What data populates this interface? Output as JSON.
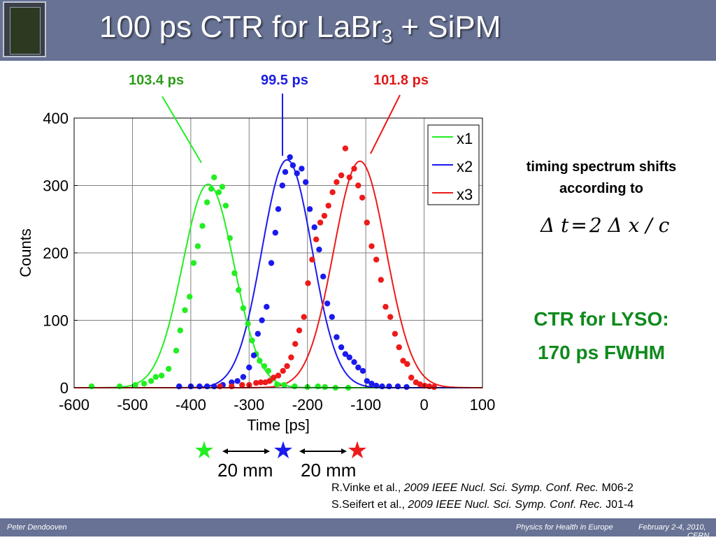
{
  "header": {
    "title_main": "100 ps CTR for LaBr",
    "title_sub": "3",
    "title_tail": " + SiPM"
  },
  "peak_labels": [
    {
      "text": "103.4 ps",
      "color": "#2e9c1a"
    },
    {
      "text": "99.5 ps",
      "color": "#1c1ce0"
    },
    {
      "text": "101.8 ps",
      "color": "#e01a1a"
    }
  ],
  "chart_data": {
    "type": "line",
    "xlabel": "Time [ps]",
    "ylabel": "Counts",
    "xlim": [
      -600,
      100
    ],
    "ylim": [
      0,
      400
    ],
    "xticks": [
      "-600",
      "-500",
      "-400",
      "-300",
      "-200",
      "-100",
      "0",
      "100"
    ],
    "yticks": [
      "0",
      "100",
      "200",
      "300",
      "400"
    ],
    "grid": true,
    "legend_position": "top-right",
    "series": [
      {
        "name": "x1",
        "color": "#22ee22",
        "fit": {
          "center": -370,
          "amplitude": 302,
          "sigma": 44
        },
        "points": [
          [
            -570,
            2
          ],
          [
            -522,
            2
          ],
          [
            -495,
            4
          ],
          [
            -480,
            6
          ],
          [
            -468,
            10
          ],
          [
            -460,
            16
          ],
          [
            -450,
            18
          ],
          [
            -438,
            28
          ],
          [
            -425,
            55
          ],
          [
            -418,
            85
          ],
          [
            -410,
            115
          ],
          [
            -402,
            135
          ],
          [
            -395,
            185
          ],
          [
            -388,
            210
          ],
          [
            -380,
            240
          ],
          [
            -372,
            275
          ],
          [
            -365,
            295
          ],
          [
            -360,
            312
          ],
          [
            -352,
            290
          ],
          [
            -346,
            298
          ],
          [
            -340,
            270
          ],
          [
            -333,
            222
          ],
          [
            -325,
            170
          ],
          [
            -318,
            145
          ],
          [
            -310,
            118
          ],
          [
            -302,
            95
          ],
          [
            -295,
            70
          ],
          [
            -288,
            50
          ],
          [
            -282,
            40
          ],
          [
            -274,
            32
          ],
          [
            -267,
            25
          ],
          [
            -262,
            12
          ],
          [
            -252,
            5
          ],
          [
            -240,
            4
          ],
          [
            -222,
            2
          ],
          [
            -200,
            1
          ],
          [
            -182,
            2
          ],
          [
            -170,
            1
          ],
          [
            -152,
            0
          ],
          [
            -130,
            0
          ]
        ]
      },
      {
        "name": "x2",
        "color": "#1a1aee",
        "fit": {
          "center": -235,
          "amplitude": 338,
          "sigma": 43
        },
        "points": [
          [
            -420,
            2
          ],
          [
            -400,
            2
          ],
          [
            -385,
            2
          ],
          [
            -372,
            2
          ],
          [
            -360,
            2
          ],
          [
            -345,
            4
          ],
          [
            -330,
            8
          ],
          [
            -320,
            10
          ],
          [
            -310,
            16
          ],
          [
            -300,
            30
          ],
          [
            -292,
            48
          ],
          [
            -285,
            80
          ],
          [
            -278,
            100
          ],
          [
            -270,
            120
          ],
          [
            -262,
            185
          ],
          [
            -255,
            230
          ],
          [
            -250,
            265
          ],
          [
            -243,
            300
          ],
          [
            -238,
            320
          ],
          [
            -230,
            342
          ],
          [
            -225,
            330
          ],
          [
            -218,
            318
          ],
          [
            -210,
            325
          ],
          [
            -203,
            305
          ],
          [
            -196,
            265
          ],
          [
            -188,
            238
          ],
          [
            -180,
            205
          ],
          [
            -173,
            165
          ],
          [
            -166,
            125
          ],
          [
            -158,
            105
          ],
          [
            -150,
            75
          ],
          [
            -142,
            60
          ],
          [
            -135,
            50
          ],
          [
            -128,
            45
          ],
          [
            -120,
            38
          ],
          [
            -113,
            30
          ],
          [
            -105,
            25
          ],
          [
            -98,
            10
          ],
          [
            -90,
            6
          ],
          [
            -82,
            3
          ],
          [
            -72,
            2
          ],
          [
            -60,
            2
          ],
          [
            -45,
            2
          ],
          [
            -30,
            1
          ]
        ]
      },
      {
        "name": "x3",
        "color": "#ee1a1a",
        "fit": {
          "center": -110,
          "amplitude": 336,
          "sigma": 45
        },
        "points": [
          [
            -350,
            2
          ],
          [
            -330,
            2
          ],
          [
            -312,
            4
          ],
          [
            -300,
            4
          ],
          [
            -288,
            7
          ],
          [
            -280,
            8
          ],
          [
            -272,
            8
          ],
          [
            -265,
            10
          ],
          [
            -258,
            15
          ],
          [
            -250,
            18
          ],
          [
            -242,
            25
          ],
          [
            -235,
            32
          ],
          [
            -228,
            45
          ],
          [
            -221,
            65
          ],
          [
            -214,
            85
          ],
          [
            -206,
            105
          ],
          [
            -199,
            155
          ],
          [
            -192,
            190
          ],
          [
            -185,
            220
          ],
          [
            -178,
            245
          ],
          [
            -171,
            255
          ],
          [
            -164,
            270
          ],
          [
            -157,
            290
          ],
          [
            -150,
            305
          ],
          [
            -142,
            315
          ],
          [
            -135,
            355
          ],
          [
            -128,
            312
          ],
          [
            -120,
            325
          ],
          [
            -113,
            300
          ],
          [
            -106,
            282
          ],
          [
            -98,
            245
          ],
          [
            -90,
            210
          ],
          [
            -82,
            190
          ],
          [
            -74,
            160
          ],
          [
            -66,
            120
          ],
          [
            -58,
            105
          ],
          [
            -50,
            80
          ],
          [
            -43,
            60
          ],
          [
            -36,
            40
          ],
          [
            -29,
            35
          ],
          [
            -22,
            15
          ],
          [
            -14,
            8
          ],
          [
            -7,
            5
          ],
          [
            1,
            3
          ],
          [
            9,
            2
          ],
          [
            17,
            1
          ]
        ]
      }
    ]
  },
  "annotation": {
    "line1": "timing spectrum shifts",
    "line2": "according to"
  },
  "formula": {
    "delta_t": "Δ t",
    "equals": "=",
    "rhs": "2 Δ x / c"
  },
  "lyso": {
    "line1": "CTR for LYSO:",
    "line2": "170 ps FWHM"
  },
  "markers": {
    "star": "★",
    "distance_1": "20 mm",
    "distance_2": "20 mm"
  },
  "references": [
    {
      "authors": "R.Vinke et al., ",
      "journal": "2009 IEEE Nucl. Sci. Symp. Conf. Rec.",
      "code": " M06-2"
    },
    {
      "authors": "S.Seifert et al., ",
      "journal": "2009 IEEE Nucl. Sci. Symp. Conf. Rec.",
      "code": " J01-4"
    }
  ],
  "footer": {
    "author": "Peter Dendooven",
    "event": "Physics for Health in Europe",
    "date": "February 2-4, 2010,",
    "place": "CERN"
  }
}
